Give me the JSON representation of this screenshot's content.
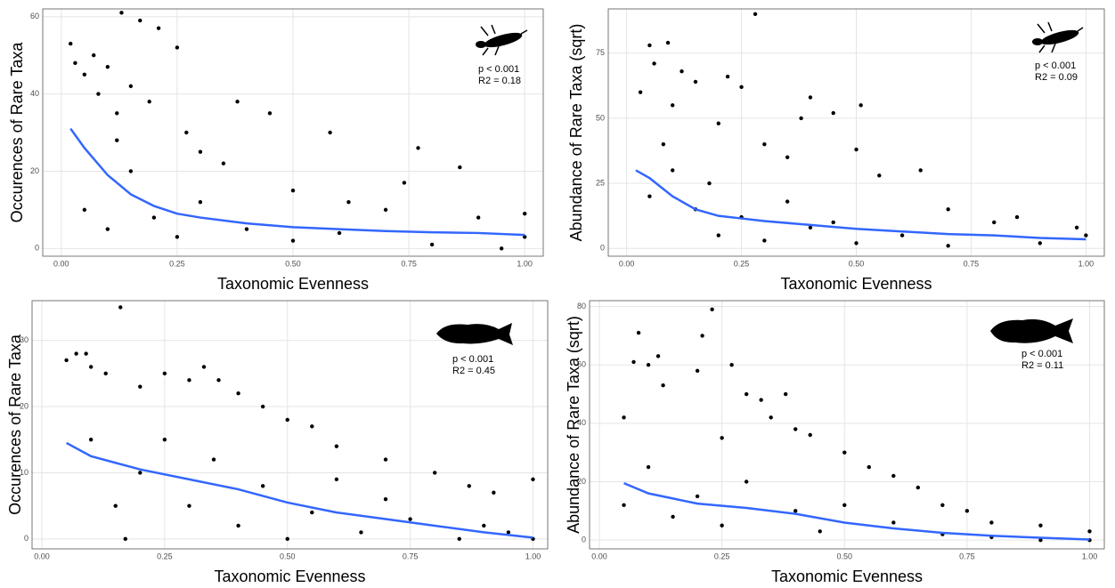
{
  "chart_data": [
    {
      "type": "scatter",
      "x_label": "Taxonomic Evenness",
      "y_label": "Occurences of Rare Taxa",
      "annotations": [
        "p < 0.001",
        "R2 = 0.18"
      ],
      "xlim": [
        -0.04,
        1.04
      ],
      "ylim": [
        -2,
        62
      ],
      "grid": true,
      "xticks": [
        {
          "value": 0,
          "label": "0.00"
        },
        {
          "value": 0.25,
          "label": "0.25"
        },
        {
          "value": 0.5,
          "label": "0.50"
        },
        {
          "value": 0.75,
          "label": "0.75"
        },
        {
          "value": 1,
          "label": "1.00"
        }
      ],
      "yticks": [
        0,
        20,
        40,
        60
      ],
      "series": [
        {
          "color": "#000000",
          "x": [
            0.02,
            0.03,
            0.05,
            0.07,
            0.08,
            0.1,
            0.12,
            0.13,
            0.15,
            0.17,
            0.19,
            0.21,
            0.25,
            0.27,
            0.3,
            0.35,
            0.38,
            0.45,
            0.5,
            0.58,
            0.62,
            0.7,
            0.74,
            0.77,
            0.86,
            0.9,
            1,
            1,
            0.05,
            0.1,
            0.15,
            0.2,
            0.25,
            0.3,
            0.4,
            0.5,
            0.6,
            0.8,
            0.95,
            0.12
          ],
          "values": [
            53,
            48,
            45,
            50,
            40,
            47,
            35,
            61,
            42,
            59,
            38,
            57,
            52,
            30,
            25,
            22,
            38,
            35,
            15,
            30,
            12,
            10,
            17,
            26,
            21,
            8,
            9,
            3,
            10,
            5,
            20,
            8,
            3,
            12,
            5,
            2,
            4,
            1,
            0,
            28
          ]
        },
        {
          "color": "#3366ff",
          "x": [
            0.02,
            0.05,
            0.1,
            0.15,
            0.2,
            0.25,
            0.3,
            0.4,
            0.5,
            0.6,
            0.7,
            0.8,
            0.9,
            1.0
          ],
          "values": [
            31,
            26,
            19,
            14,
            11,
            9,
            8,
            6.5,
            5.5,
            5,
            4.5,
            4.2,
            4,
            3.5
          ]
        }
      ]
    },
    {
      "type": "scatter",
      "x_label": "Taxonomic Evenness",
      "y_label": "Abundance of Rare Taxa (sqrt)",
      "annotations": [
        "p < 0.001",
        "R2 = 0.09"
      ],
      "xlim": [
        -0.04,
        1.04
      ],
      "ylim": [
        -3,
        92
      ],
      "grid": true,
      "xticks": [
        {
          "value": 0,
          "label": "0.00"
        },
        {
          "value": 0.25,
          "label": "0.25"
        },
        {
          "value": 0.5,
          "label": "0.50"
        },
        {
          "value": 0.75,
          "label": "0.75"
        },
        {
          "value": 1,
          "label": "1.00"
        }
      ],
      "yticks": [
        0,
        25,
        50,
        75
      ],
      "series": [
        {
          "color": "#000000",
          "x": [
            0.03,
            0.05,
            0.06,
            0.09,
            0.1,
            0.12,
            0.15,
            0.2,
            0.22,
            0.25,
            0.28,
            0.3,
            0.35,
            0.38,
            0.4,
            0.45,
            0.5,
            0.51,
            0.55,
            0.64,
            0.7,
            0.8,
            0.85,
            0.98,
            1,
            0.05,
            0.1,
            0.15,
            0.2,
            0.25,
            0.3,
            0.4,
            0.5,
            0.6,
            0.7,
            0.9,
            0.08,
            0.18,
            0.35,
            0.45
          ],
          "values": [
            60,
            78,
            71,
            79,
            55,
            68,
            64,
            48,
            66,
            62,
            90,
            40,
            35,
            50,
            58,
            52,
            38,
            55,
            28,
            30,
            15,
            10,
            12,
            8,
            5,
            20,
            30,
            15,
            5,
            12,
            3,
            8,
            2,
            5,
            1,
            2,
            40,
            25,
            18,
            10
          ]
        },
        {
          "color": "#3366ff",
          "x": [
            0.02,
            0.05,
            0.1,
            0.15,
            0.2,
            0.25,
            0.3,
            0.4,
            0.5,
            0.6,
            0.7,
            0.8,
            0.9,
            1.0
          ],
          "values": [
            30,
            27,
            20,
            15,
            12.5,
            11.5,
            10.5,
            9,
            7.5,
            6.5,
            5.5,
            5,
            4,
            3.5
          ]
        }
      ]
    },
    {
      "type": "scatter",
      "x_label": "Taxonomic Evenness",
      "y_label": "Occurences of Rare Taxa",
      "annotations": [
        "p < 0.001",
        "R2 = 0.45"
      ],
      "xlim": [
        -0.02,
        1.03
      ],
      "ylim": [
        -1.5,
        36
      ],
      "grid": true,
      "xticks": [
        {
          "value": 0,
          "label": "0.00"
        },
        {
          "value": 0.25,
          "label": "0.25"
        },
        {
          "value": 0.5,
          "label": "0.50"
        },
        {
          "value": 0.75,
          "label": "0.75"
        },
        {
          "value": 1,
          "label": "1.00"
        }
      ],
      "yticks": [
        0,
        10,
        20,
        30
      ],
      "series": [
        {
          "color": "#000000",
          "x": [
            0.05,
            0.07,
            0.09,
            0.1,
            0.13,
            0.16,
            0.2,
            0.25,
            0.3,
            0.33,
            0.36,
            0.4,
            0.45,
            0.5,
            0.55,
            0.6,
            0.7,
            0.8,
            0.87,
            0.92,
            1,
            1,
            0.1,
            0.15,
            0.17,
            0.2,
            0.25,
            0.3,
            0.35,
            0.4,
            0.45,
            0.5,
            0.55,
            0.6,
            0.65,
            0.7,
            0.75,
            0.85,
            0.9,
            0.95
          ],
          "values": [
            27,
            28,
            28,
            26,
            25,
            35,
            23,
            25,
            24,
            26,
            24,
            22,
            20,
            18,
            17,
            14,
            12,
            10,
            8,
            7,
            9,
            0,
            15,
            5,
            0,
            10,
            15,
            5,
            12,
            2,
            8,
            0,
            4,
            9,
            1,
            6,
            3,
            0,
            2,
            1
          ]
        },
        {
          "color": "#3366ff",
          "x": [
            0.05,
            0.1,
            0.2,
            0.3,
            0.4,
            0.5,
            0.6,
            0.7,
            0.8,
            0.9,
            1.0
          ],
          "values": [
            14.5,
            12.5,
            10.5,
            9,
            7.5,
            5.5,
            4,
            3,
            2,
            1,
            0.2
          ]
        }
      ]
    },
    {
      "type": "scatter",
      "x_label": "Taxonomic Evenness",
      "y_label": "Abundance of Rare Taxa (sqrt)",
      "annotations": [
        "p < 0.001",
        "R2 = 0.11"
      ],
      "xlim": [
        -0.02,
        1.03
      ],
      "ylim": [
        -3,
        82
      ],
      "grid": true,
      "xticks": [
        {
          "value": 0,
          "label": "0.00"
        },
        {
          "value": 0.25,
          "label": "0.25"
        },
        {
          "value": 0.5,
          "label": "0.50"
        },
        {
          "value": 0.75,
          "label": "0.75"
        },
        {
          "value": 1,
          "label": "1.00"
        }
      ],
      "yticks": [
        0,
        20,
        40,
        60,
        80
      ],
      "series": [
        {
          "color": "#000000",
          "x": [
            0.05,
            0.07,
            0.08,
            0.1,
            0.12,
            0.13,
            0.2,
            0.21,
            0.23,
            0.25,
            0.27,
            0.3,
            0.33,
            0.35,
            0.38,
            0.4,
            0.43,
            0.5,
            0.55,
            0.6,
            0.65,
            0.7,
            0.75,
            0.8,
            0.9,
            1,
            0.05,
            0.1,
            0.15,
            0.2,
            0.25,
            0.3,
            0.4,
            0.45,
            0.5,
            0.6,
            0.7,
            0.8,
            0.9,
            1
          ],
          "values": [
            42,
            61,
            71,
            60,
            63,
            53,
            58,
            70,
            79,
            35,
            60,
            50,
            48,
            42,
            50,
            38,
            36,
            30,
            25,
            22,
            18,
            12,
            10,
            6,
            5,
            3,
            12,
            25,
            8,
            15,
            5,
            20,
            10,
            3,
            12,
            6,
            2,
            1,
            0,
            0
          ]
        },
        {
          "color": "#3366ff",
          "x": [
            0.05,
            0.1,
            0.2,
            0.3,
            0.4,
            0.5,
            0.6,
            0.7,
            0.8,
            0.9,
            1.0
          ],
          "values": [
            19.5,
            16,
            12.5,
            11,
            9,
            6,
            4,
            2.5,
            1.5,
            0.8,
            0.2
          ]
        }
      ]
    }
  ]
}
